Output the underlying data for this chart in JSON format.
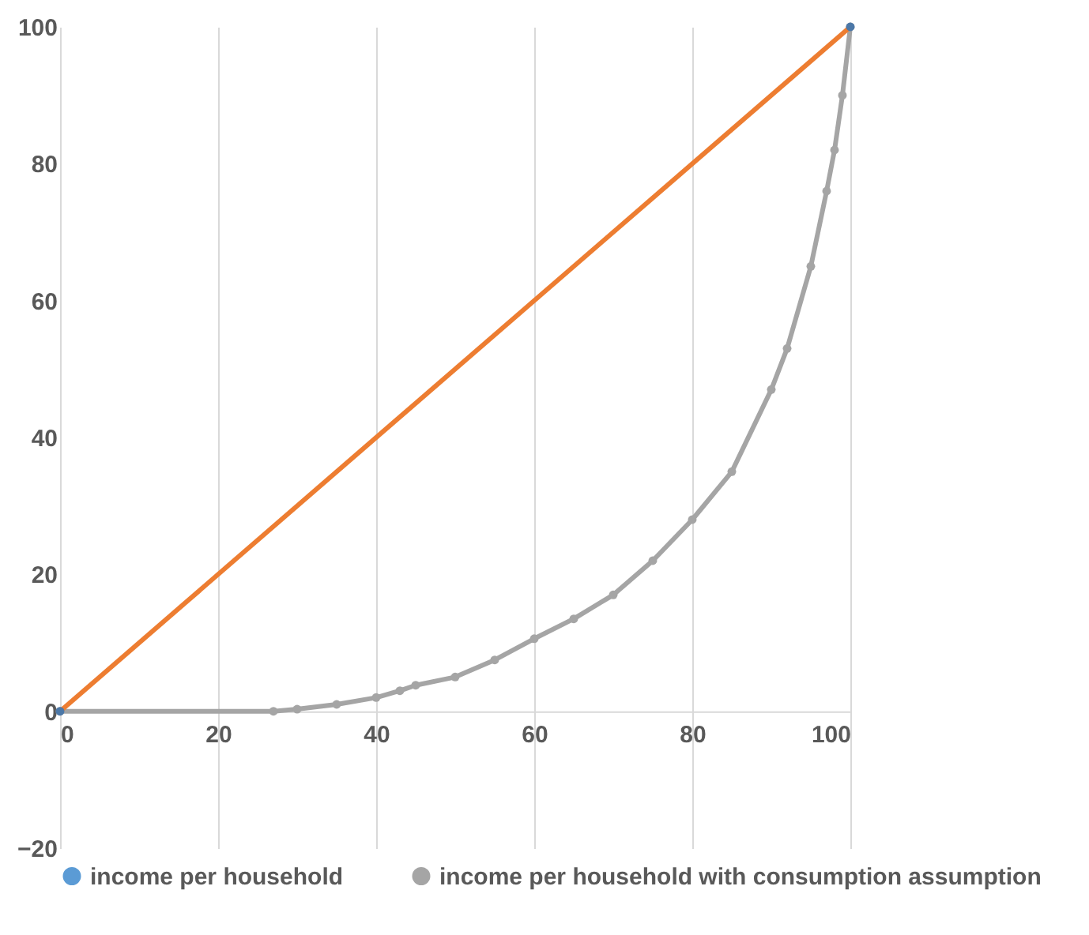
{
  "chart_data": {
    "type": "line",
    "x": [
      0,
      27,
      30,
      35,
      40,
      43,
      45,
      50,
      55,
      60,
      65,
      70,
      75,
      80,
      85,
      90,
      92,
      95,
      97,
      98,
      99,
      100
    ],
    "series": [
      {
        "name": "income per household",
        "color": "#5b9bd5",
        "values": [
          null,
          null,
          null,
          null,
          null,
          null,
          null,
          null,
          null,
          null,
          null,
          null,
          null,
          null,
          null,
          null,
          null,
          null,
          null,
          null,
          null,
          null
        ]
      },
      {
        "name": "income per household with consumption assumption",
        "color": "#a5a5a5",
        "values": [
          0,
          0,
          0.3,
          1,
          2,
          3,
          3.8,
          5,
          7.5,
          10.6,
          13.5,
          17,
          22,
          28,
          35,
          47,
          53,
          65,
          76,
          82,
          90,
          100
        ]
      },
      {
        "color": "#ed7d31",
        "x": [
          0,
          100
        ],
        "values": [
          0,
          100
        ]
      }
    ],
    "xlim": [
      0,
      100
    ],
    "xticks": [
      0,
      20,
      40,
      60,
      80,
      100
    ],
    "ylim": [
      -20,
      100
    ],
    "yticks": [
      -20,
      0,
      20,
      40,
      60,
      80,
      100
    ],
    "grid": "x",
    "legend": "bottom",
    "marker": "circle",
    "line_style": "solid"
  }
}
